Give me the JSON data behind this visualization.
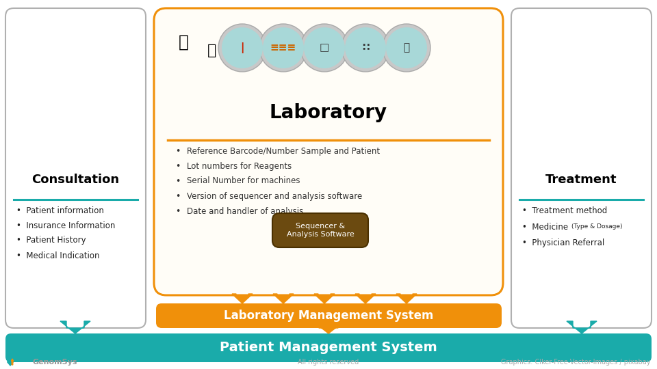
{
  "bg_color": "#ffffff",
  "teal_color": "#1aabaa",
  "orange_color": "#f0900a",
  "light_orange_bg": "#fdecd0",
  "brown_color": "#6b4a10",
  "consultation_title": "Consultation",
  "consultation_items": [
    "Patient information",
    "Insurance Information",
    "Patient History",
    "Medical Indication"
  ],
  "lab_title": "Laboratory",
  "lab_items": [
    "Reference Barcode/Number Sample and Patient",
    "Lot numbers for Reagents",
    "Serial Number for machines",
    "Version of sequencer and analysis software",
    "Date and handler of analysis"
  ],
  "treatment_title": "Treatment",
  "treatment_items": [
    "Treatment method",
    "Medicine",
    "(Type & Dosage)",
    "Physician Referral"
  ],
  "lms_label": "Laboratory Management System",
  "pms_label": "Patient Management System",
  "sequencer_label": "Sequencer &\nAnalysis Software",
  "footer_left": "GenomSys",
  "footer_center": "All rights reserved",
  "footer_right": "Graphics: Clker-Free-Vector-Images / pixabay"
}
